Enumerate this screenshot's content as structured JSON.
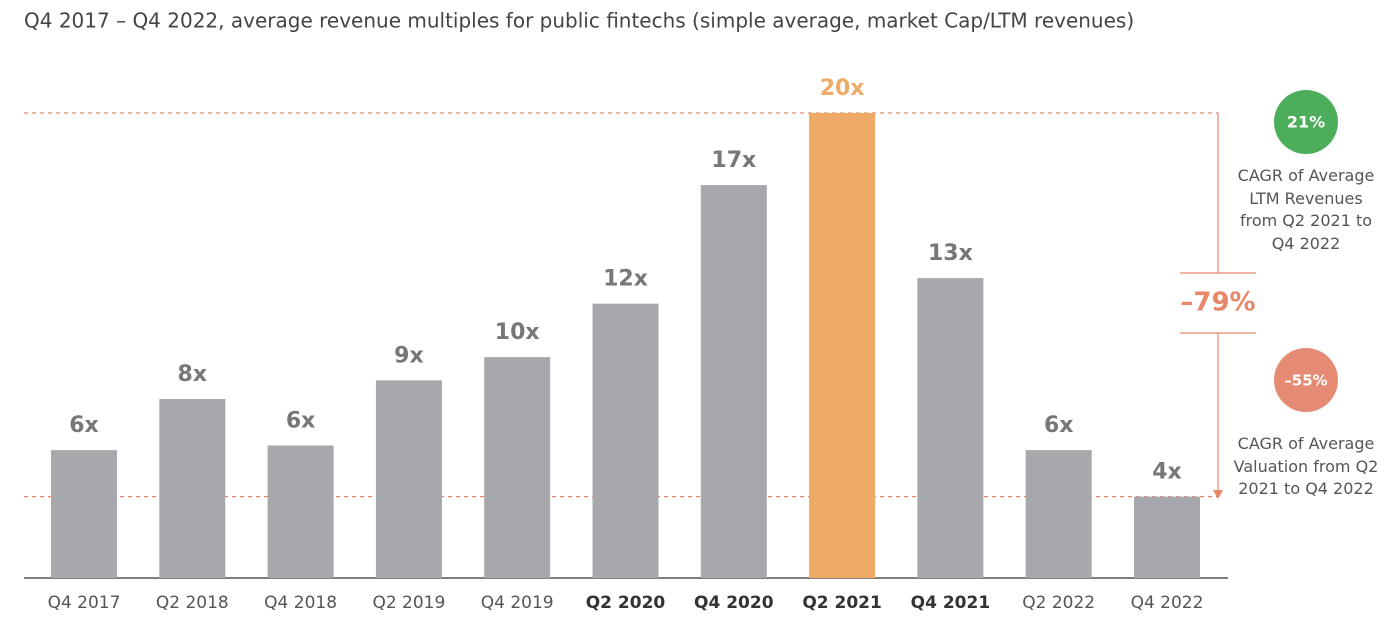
{
  "chart_data": {
    "type": "bar",
    "title": "Q4 2017 – Q4 2022, average revenue multiples for public fintechs (simple average, market Cap/LTM revenues)",
    "categories": [
      "Q4 2017",
      "Q2 2018",
      "Q4 2018",
      "Q2 2019",
      "Q4 2019",
      "Q2 2020",
      "Q4 2020",
      "Q2 2021",
      "Q4 2021",
      "Q2 2022",
      "Q4 2022"
    ],
    "values": [
      5.5,
      7.7,
      5.7,
      8.5,
      9.5,
      11.8,
      16.9,
      20,
      12.9,
      5.5,
      3.5
    ],
    "value_labels": [
      "6x",
      "8x",
      "6x",
      "9x",
      "10x",
      "12x",
      "17x",
      "20x",
      "13x",
      "6x",
      "4x"
    ],
    "colors": [
      "#a7a8ac",
      "#a7a8ac",
      "#a7a8ac",
      "#a7a8ac",
      "#a7a8ac",
      "#a7a8ac",
      "#a7a8ac",
      "#eeab68",
      "#a7a8ac",
      "#a7a8ac",
      "#a7a8ac"
    ],
    "bold_categories": [
      false,
      false,
      false,
      false,
      false,
      true,
      true,
      true,
      true,
      false,
      false
    ],
    "ylim": [
      0,
      20
    ],
    "annotations": {
      "total_change": "–79%",
      "revenue_cagr": "21%",
      "revenue_cagr_label": "CAGR of Average LTM Revenues from Q2 2021 to Q4 2022",
      "valuation_cagr": "–55%",
      "valuation_cagr_label": "CAGR of Average Valuation from Q2 2021 to Q4 2022"
    }
  }
}
